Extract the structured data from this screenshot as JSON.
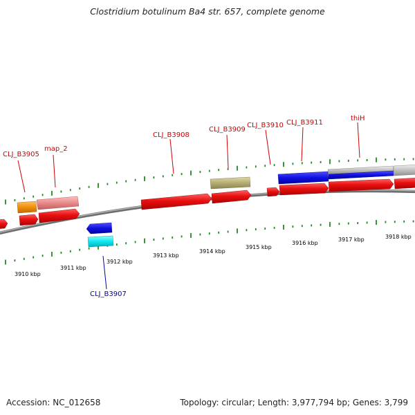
{
  "title": "Clostridium botulinum Ba4 str. 657, complete genome",
  "footer": {
    "accession": "Accession: NC_012658",
    "topology": "Topology: circular; Length: 3,977,794 bp; Genes: 3,799"
  },
  "colors": {
    "forward_gene": "#e01010",
    "label_red": "#cc0000",
    "label_blue": "#000099",
    "tick": "#228822",
    "backbone": "#808080"
  },
  "kbp_labels": [
    "3910 kbp",
    "3911 kbp",
    "3912 kbp",
    "3913 kbp",
    "3914 kbp",
    "3915 kbp",
    "3916 kbp",
    "3917 kbp",
    "3918 kbp"
  ],
  "gene_labels": [
    "CLJ_B3905",
    "map_2",
    "CLJ_B3908",
    "CLJ_B3909",
    "CLJ_B3910",
    "CLJ_B3911",
    "thiH",
    "CLJ_B3907"
  ],
  "feature_colors": {
    "orange": "#f0900a",
    "pink": "#e88888",
    "olive": "#b5ad72",
    "blue": "#1a1ae0",
    "cyan": "#10e8f0",
    "grey": "#c0c0c0"
  }
}
